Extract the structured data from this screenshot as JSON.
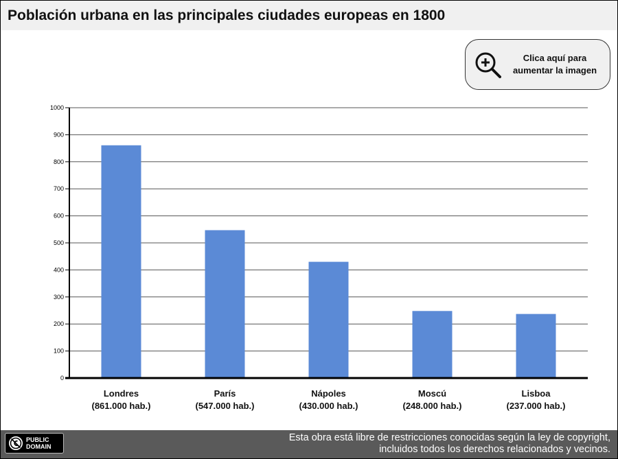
{
  "header": {
    "title": "Población urbana en las principales ciudades europeas en 1800"
  },
  "zoom_button": {
    "line1": "Clica aquí para",
    "line2": "aumentar la imagen",
    "icon": "zoom-in-icon"
  },
  "chart_data": {
    "type": "bar",
    "title": "",
    "xlabel": "",
    "ylabel": "",
    "ylim": [
      0,
      1000
    ],
    "yticks": [
      0,
      100,
      200,
      300,
      400,
      500,
      600,
      700,
      800,
      900,
      1000
    ],
    "grid": true,
    "bar_color": "#5b8ad6",
    "categories": [
      {
        "name": "Londres",
        "note": "(861.000 hab.)"
      },
      {
        "name": "París",
        "note": "(547.000 hab.)"
      },
      {
        "name": "Nápoles",
        "note": "(430.000 hab.)"
      },
      {
        "name": "Moscú",
        "note": "(248.000 hab.)"
      },
      {
        "name": "Lisboa",
        "note": "(237.000 hab.)"
      }
    ],
    "values": [
      861,
      547,
      430,
      248,
      237
    ]
  },
  "footer": {
    "badge_line1": "PUBLIC",
    "badge_line2": "DOMAIN",
    "line1": "Esta obra está libre de restricciones conocidas según la ley de copyright,",
    "line2": "incluidos todos los derechos relacionados y vecinos."
  }
}
